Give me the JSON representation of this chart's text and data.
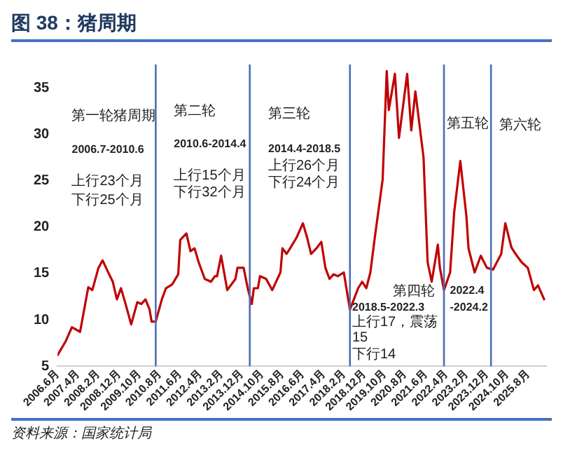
{
  "chart_data": {
    "type": "line",
    "title": "图 38：猪周期",
    "x": [
      "2006-06",
      "2006-10",
      "2007-01",
      "2007-05",
      "2007-07",
      "2007-09",
      "2007-11",
      "2008-02",
      "2008-04",
      "2008-07",
      "2008-09",
      "2008-11",
      "2009-01",
      "2009-03",
      "2009-06",
      "2009-09",
      "2009-11",
      "2010-01",
      "2010-03",
      "2010-04",
      "2010-06",
      "2010-09",
      "2010-11",
      "2011-02",
      "2011-05",
      "2011-06",
      "2011-09",
      "2011-11",
      "2012-01",
      "2012-03",
      "2012-06",
      "2012-09",
      "2012-11",
      "2012-12",
      "2013-02",
      "2013-05",
      "2013-09",
      "2013-10",
      "2014-01",
      "2014-03",
      "2014-05",
      "2014-06",
      "2014-08",
      "2014-09",
      "2014-12",
      "2015-03",
      "2015-07",
      "2015-08",
      "2015-10",
      "2015-12",
      "2016-03",
      "2016-06",
      "2016-08",
      "2016-10",
      "2017-01",
      "2017-03",
      "2017-05",
      "2017-07",
      "2017-09",
      "2017-11",
      "2018-02",
      "2018-05",
      "2018-09",
      "2018-11",
      "2019-01",
      "2019-03",
      "2019-05",
      "2019-09",
      "2019-11",
      "2019-12",
      "2020-03",
      "2020-05",
      "2020-09",
      "2020-11",
      "2021-01",
      "2021-05",
      "2021-07",
      "2021-09",
      "2021-12",
      "2022-01",
      "2022-03",
      "2022-06",
      "2022-08",
      "2022-11",
      "2023-02",
      "2023-03",
      "2023-06",
      "2023-09",
      "2023-12",
      "2024-03",
      "2024-07",
      "2024-09",
      "2024-12",
      "2025-02",
      "2025-05",
      "2025-08",
      "2025-11",
      "2026-01",
      "2026-04"
    ],
    "series": [
      {
        "color": "#c00000",
        "values": [
          6.2,
          7.7,
          9.2,
          8.7,
          11.1,
          13.5,
          13.2,
          15.6,
          16.4,
          15.0,
          14.1,
          12.2,
          13.4,
          11.9,
          9.5,
          11.9,
          11.7,
          12.2,
          11.1,
          9.8,
          9.8,
          12.2,
          13.4,
          13.8,
          14.9,
          18.6,
          19.3,
          17.4,
          17.7,
          16.2,
          14.4,
          14.1,
          14.7,
          14.7,
          16.9,
          13.2,
          14.4,
          15.6,
          15.6,
          13.4,
          11.7,
          13.4,
          13.4,
          14.7,
          14.4,
          13.2,
          15.1,
          17.7,
          17.1,
          17.8,
          18.9,
          20.4,
          18.9,
          17.1,
          17.8,
          18.4,
          15.6,
          14.4,
          14.9,
          14.7,
          15.1,
          11.1,
          13.4,
          14.1,
          13.4,
          15.1,
          18.6,
          25.1,
          36.8,
          32.6,
          36.5,
          29.6,
          36.5,
          30.4,
          34.6,
          27.5,
          16.2,
          14.1,
          18.1,
          15.6,
          13.2,
          15.1,
          21.6,
          27.1,
          21.1,
          17.7,
          15.1,
          16.9,
          15.6,
          15.4,
          17.1,
          20.4,
          17.8,
          17.1,
          16.2,
          15.6,
          13.2,
          13.7,
          12.2
        ]
      }
    ],
    "xlim": [
      "2006-06",
      "2026-05"
    ],
    "xticks": [
      {
        "value": "2006-06",
        "label": "2006.6月"
      },
      {
        "value": "2007-04",
        "label": "2007.4月"
      },
      {
        "value": "2008-02",
        "label": "2008.2月"
      },
      {
        "value": "2008-12",
        "label": "2008.12月"
      },
      {
        "value": "2009-10",
        "label": "2009.10月"
      },
      {
        "value": "2010-08",
        "label": "2010.8月"
      },
      {
        "value": "2011-06",
        "label": "2011.6月"
      },
      {
        "value": "2012-04",
        "label": "2012.4月"
      },
      {
        "value": "2013-02",
        "label": "2013.2月"
      },
      {
        "value": "2013-12",
        "label": "2013.12月"
      },
      {
        "value": "2014-10",
        "label": "2014.10月"
      },
      {
        "value": "2015-08",
        "label": "2015.8月"
      },
      {
        "value": "2016-06",
        "label": "2016.6月"
      },
      {
        "value": "2017-04",
        "label": "2017.4月"
      },
      {
        "value": "2018-02",
        "label": "2018.2月"
      },
      {
        "value": "2018-12",
        "label": "2018.12月"
      },
      {
        "value": "2019-10",
        "label": "2019.10月"
      },
      {
        "value": "2020-08",
        "label": "2020.8月"
      },
      {
        "value": "2021-06",
        "label": "2021.6月"
      },
      {
        "value": "2022-04",
        "label": "2022.4月"
      },
      {
        "value": "2023-02",
        "label": "2023.2月"
      },
      {
        "value": "2023-12",
        "label": "2023.12月"
      },
      {
        "value": "2024-10",
        "label": "2024.10月"
      },
      {
        "value": "2025-08",
        "label": "2025.8月"
      }
    ],
    "ylim": [
      5,
      37.5
    ],
    "yticks": [
      5,
      10,
      15,
      20,
      25,
      30,
      35
    ],
    "ref_lines": [
      {
        "axis": "x",
        "value": "2010-06",
        "color": "#4a6fb5"
      },
      {
        "axis": "x",
        "value": "2014-04",
        "color": "#4a6fb5"
      },
      {
        "axis": "x",
        "value": "2018-05",
        "color": "#4a6fb5"
      },
      {
        "axis": "x",
        "value": "2022-03",
        "color": "#4a6fb5"
      },
      {
        "axis": "x",
        "value": "2024-02",
        "color": "#4a6fb5"
      }
    ],
    "annotations": [
      "第一轮猪周期",
      "2006.7-2010.6",
      "上行23个月",
      "下行25个月",
      "第二轮",
      "2010.6-2014.4",
      "上行15个月",
      "下行32个月",
      "第三轮",
      "2014.4-2018.5",
      "上行26个月",
      "下行24个月",
      "第四轮",
      "2018.5-2022.3",
      "上行17，震荡15",
      "下行14",
      "第五轮",
      "2022.4",
      "-2024.2",
      "第六轮",
      "资料来源：国家统计局"
    ]
  }
}
